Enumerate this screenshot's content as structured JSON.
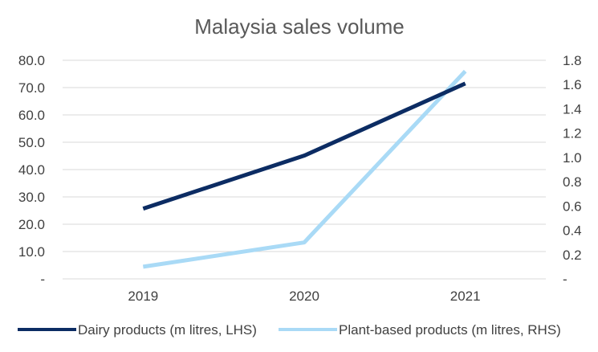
{
  "chart_data": {
    "type": "line",
    "title": "Malaysia sales volume",
    "categories": [
      "2019",
      "2020",
      "2021"
    ],
    "y_left": {
      "ylim": [
        0,
        80
      ],
      "ticks": [
        "-",
        "10.0",
        "20.0",
        "30.0",
        "40.0",
        "50.0",
        "60.0",
        "70.0",
        "80.0"
      ]
    },
    "y_right": {
      "ylim": [
        0,
        1.8
      ],
      "ticks": [
        "-",
        "0.2",
        "0.4",
        "0.6",
        "0.8",
        "1.0",
        "1.2",
        "1.4",
        "1.6",
        "1.8"
      ]
    },
    "grid": true,
    "legend_position": "bottom",
    "series": [
      {
        "name": "Dairy products (m litres, LHS)",
        "axis": "left",
        "color": "#0c2c63",
        "values": [
          25.7,
          45.1,
          71.5
        ]
      },
      {
        "name": "Plant-based products (m litres, RHS)",
        "axis": "right",
        "color": "#a9daf6",
        "values": [
          0.1,
          0.3,
          1.71
        ]
      }
    ]
  }
}
